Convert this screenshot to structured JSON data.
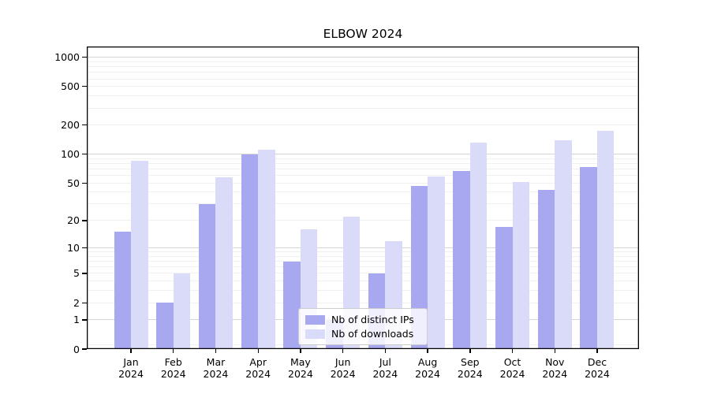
{
  "chart_data": {
    "type": "bar",
    "title": "ELBOW 2024",
    "scale": "log1p",
    "ylim": [
      0,
      1290
    ],
    "grid": "on",
    "legend_position": "lower center (inside axes, overlapping Jun-Jul bars)",
    "categories": [
      "Jan",
      "Feb",
      "Mar",
      "Apr",
      "May",
      "Jun",
      "Jul",
      "Aug",
      "Sep",
      "Oct",
      "Nov",
      "Dec"
    ],
    "category_year": "2024",
    "series": [
      {
        "name": "Nb of distinct IPs",
        "color": "#a8a8f0",
        "values": [
          15,
          2,
          30,
          100,
          7,
          1,
          5,
          47,
          67,
          17,
          42,
          74
        ]
      },
      {
        "name": "Nb of downloads",
        "color": "#dadaf9",
        "values": [
          85,
          5,
          57,
          112,
          16,
          22,
          12,
          58,
          132,
          51,
          140,
          175
        ]
      }
    ],
    "yticks": [
      0,
      1,
      2,
      5,
      10,
      20,
      50,
      100,
      200,
      500,
      1000
    ],
    "gridlines_major": [
      1,
      10,
      100,
      1000
    ],
    "gridlines_minor": [
      0.1,
      2,
      3,
      4,
      5,
      6,
      7,
      8,
      9,
      20,
      30,
      40,
      50,
      60,
      70,
      80,
      90,
      200,
      300,
      400,
      500,
      600,
      700,
      800,
      900
    ],
    "colors": {
      "axes": "#000000",
      "grid_major": "#d5d5d5",
      "grid_minor": "#f0f0f0",
      "legend_border": "#cccccc"
    }
  }
}
